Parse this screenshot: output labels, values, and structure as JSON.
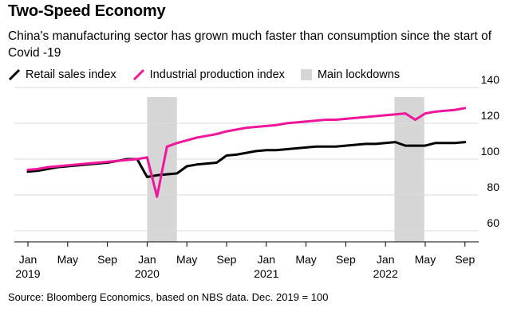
{
  "title": "Two-Speed Economy",
  "subtitle": "China's manufacturing sector has grown much faster than consumption since the start of Covid -19",
  "source": "Source: Bloomberg Economics, based on NBS data. Dec. 2019 = 100",
  "legend": {
    "retail": "Retail sales index",
    "industrial": "Industrial production index",
    "lockdowns": "Main lockdowns"
  },
  "colors": {
    "retail": "#000000",
    "industrial": "#f0169b",
    "lockdown": "#d6d6d6"
  },
  "chart_data": {
    "type": "line",
    "x_unit": "month index, 0 = Jan 2019",
    "ylim": [
      55,
      140
    ],
    "y_ticks": [
      60,
      80,
      100,
      120,
      140
    ],
    "x_ticks": [
      {
        "x": 0,
        "label": "Jan",
        "year": "2019"
      },
      {
        "x": 4,
        "label": "May",
        "year": ""
      },
      {
        "x": 8,
        "label": "Sep",
        "year": ""
      },
      {
        "x": 12,
        "label": "Jan",
        "year": "2020"
      },
      {
        "x": 16,
        "label": "May",
        "year": ""
      },
      {
        "x": 20,
        "label": "Sep",
        "year": ""
      },
      {
        "x": 24,
        "label": "Jan",
        "year": "2021"
      },
      {
        "x": 28,
        "label": "May",
        "year": ""
      },
      {
        "x": 32,
        "label": "Sep",
        "year": ""
      },
      {
        "x": 36,
        "label": "Jan",
        "year": "2022"
      },
      {
        "x": 40,
        "label": "May",
        "year": ""
      },
      {
        "x": 44,
        "label": "Sep",
        "year": ""
      }
    ],
    "shaded_periods": [
      {
        "name": "Main lockdowns",
        "start": 12.0,
        "end": 15.0
      },
      {
        "name": "Main lockdowns",
        "start": 36.9,
        "end": 39.9
      }
    ],
    "series": [
      {
        "name": "Retail sales index",
        "color": "#000000",
        "points": [
          [
            0,
            93
          ],
          [
            1,
            93.5
          ],
          [
            2,
            94.5
          ],
          [
            3,
            95.5
          ],
          [
            4,
            96
          ],
          [
            5,
            96.5
          ],
          [
            6,
            97
          ],
          [
            7,
            97.5
          ],
          [
            8,
            98
          ],
          [
            9,
            99
          ],
          [
            10,
            100
          ],
          [
            11,
            100
          ],
          [
            12,
            90
          ],
          [
            13,
            91
          ],
          [
            14,
            91.5
          ],
          [
            15,
            92
          ],
          [
            16,
            96
          ],
          [
            17,
            97
          ],
          [
            18,
            97.5
          ],
          [
            19,
            98
          ],
          [
            20,
            102
          ],
          [
            21,
            102.5
          ],
          [
            22,
            103.5
          ],
          [
            23,
            104.5
          ],
          [
            24,
            105
          ],
          [
            25,
            105
          ],
          [
            26,
            105.5
          ],
          [
            27,
            106
          ],
          [
            28,
            106.5
          ],
          [
            29,
            107
          ],
          [
            30,
            107
          ],
          [
            31,
            107
          ],
          [
            32,
            107.5
          ],
          [
            33,
            108
          ],
          [
            34,
            108.5
          ],
          [
            35,
            108.5
          ],
          [
            36,
            109
          ],
          [
            37,
            109.5
          ],
          [
            38,
            107.5
          ],
          [
            39,
            107.5
          ],
          [
            40,
            107.5
          ],
          [
            41,
            109
          ],
          [
            42,
            109
          ],
          [
            43,
            109
          ],
          [
            44,
            109.5
          ]
        ]
      },
      {
        "name": "Industrial production index",
        "color": "#f0169b",
        "points": [
          [
            0,
            94
          ],
          [
            1,
            94.5
          ],
          [
            2,
            95.5
          ],
          [
            3,
            96
          ],
          [
            4,
            96.5
          ],
          [
            5,
            97
          ],
          [
            6,
            97.5
          ],
          [
            7,
            98
          ],
          [
            8,
            98.5
          ],
          [
            9,
            99
          ],
          [
            10,
            99.5
          ],
          [
            11,
            100
          ],
          [
            12,
            101
          ],
          [
            13,
            79
          ],
          [
            14,
            107
          ],
          [
            15,
            109
          ],
          [
            16,
            110.5
          ],
          [
            17,
            112
          ],
          [
            18,
            113
          ],
          [
            19,
            114
          ],
          [
            20,
            115.5
          ],
          [
            21,
            116.5
          ],
          [
            22,
            117.5
          ],
          [
            23,
            118
          ],
          [
            24,
            118.5
          ],
          [
            25,
            119
          ],
          [
            26,
            120
          ],
          [
            27,
            120.5
          ],
          [
            28,
            121
          ],
          [
            29,
            121.5
          ],
          [
            30,
            122
          ],
          [
            31,
            122
          ],
          [
            32,
            122.5
          ],
          [
            33,
            123
          ],
          [
            34,
            123.5
          ],
          [
            35,
            124
          ],
          [
            36,
            124.5
          ],
          [
            37,
            125
          ],
          [
            38,
            125.5
          ],
          [
            39,
            122
          ],
          [
            40,
            125.5
          ],
          [
            41,
            126.5
          ],
          [
            42,
            127
          ],
          [
            43,
            127.5
          ],
          [
            44,
            128.5
          ]
        ]
      }
    ]
  }
}
